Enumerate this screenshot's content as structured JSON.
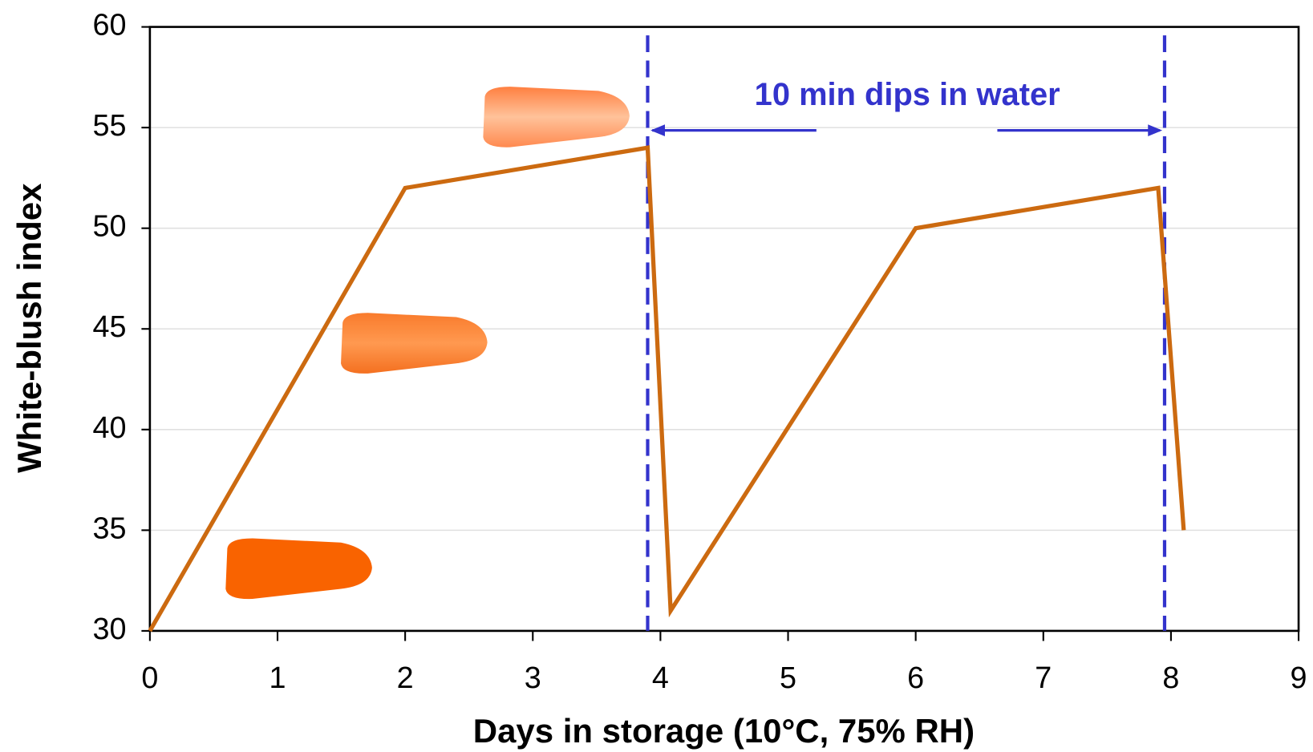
{
  "chart_data": {
    "type": "line",
    "xlabel": "Days in storage (10°C, 75% RH)",
    "ylabel": "White-blush index",
    "annotation": "10 min dips in water",
    "x": [
      0,
      2,
      3.9,
      4.08,
      6,
      7.9,
      8.1
    ],
    "series": [
      {
        "color": "#cc6a10",
        "values": [
          30,
          52,
          54,
          31,
          50,
          52,
          35
        ]
      }
    ],
    "vlines": [
      3.9,
      7.95
    ],
    "vline_color": "#3333cc",
    "xlim": [
      0,
      9
    ],
    "xticks": [
      0,
      1,
      2,
      3,
      4,
      5,
      6,
      7,
      8,
      9
    ],
    "ylim": [
      30,
      60
    ],
    "yticks": [
      30,
      35,
      40,
      45,
      50,
      55,
      60
    ],
    "grid": true
  }
}
